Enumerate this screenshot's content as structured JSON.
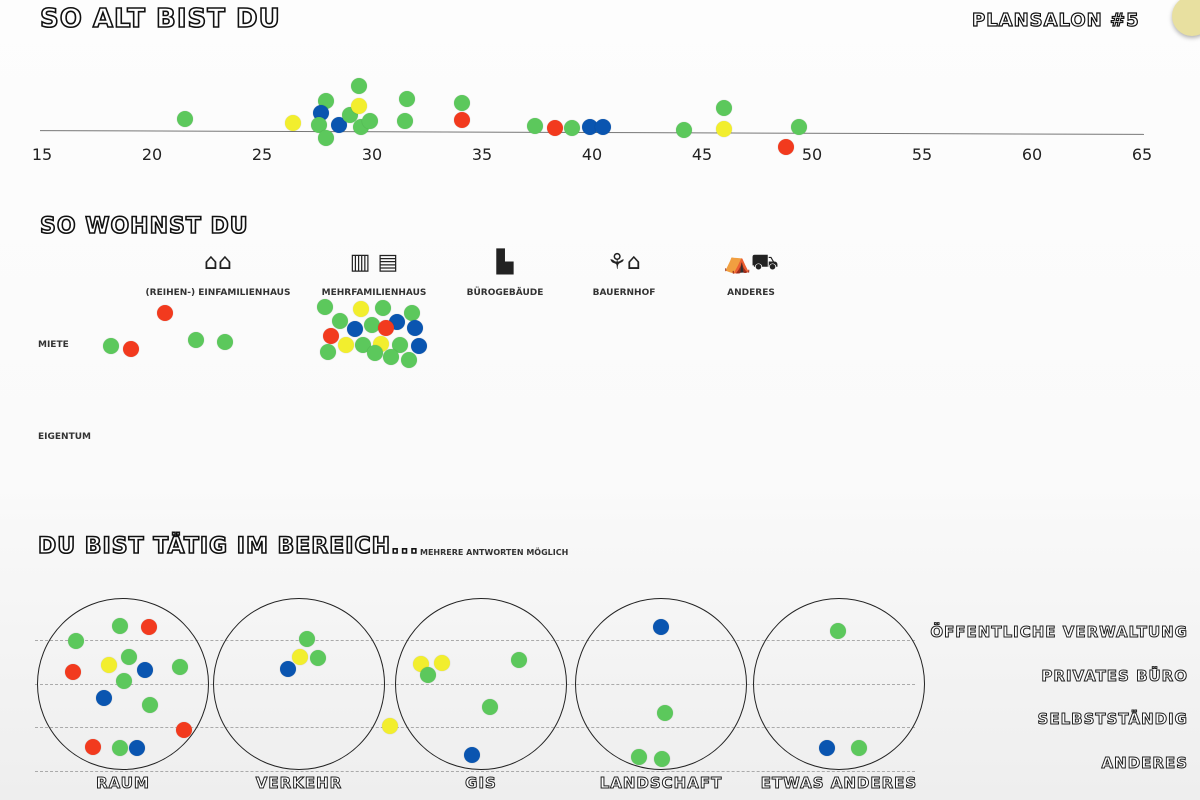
{
  "poster_title": "Plansalon #5",
  "colors": {
    "green": "#5cc85c",
    "red": "#f23a1e",
    "blue": "#0a55b0",
    "yellow": "#f2ee2e"
  },
  "chart_data": [
    {
      "type": "scatter",
      "title": "So alt bist du",
      "xlim": [
        15,
        65
      ],
      "ticks": [
        "15",
        "20",
        "25",
        "30",
        "35",
        "40",
        "45",
        "50",
        "55",
        "60",
        "65"
      ],
      "points": [
        {
          "x": 21.5,
          "color": "green"
        },
        {
          "x": 26.4,
          "color": "yellow"
        },
        {
          "x": 27.9,
          "color": "green"
        },
        {
          "x": 27.7,
          "color": "blue"
        },
        {
          "x": 27.6,
          "color": "green"
        },
        {
          "x": 27.9,
          "color": "green"
        },
        {
          "x": 28.5,
          "color": "blue"
        },
        {
          "x": 29.0,
          "color": "green"
        },
        {
          "x": 29.4,
          "color": "green"
        },
        {
          "x": 29.4,
          "color": "yellow"
        },
        {
          "x": 29.5,
          "color": "green"
        },
        {
          "x": 29.9,
          "color": "green"
        },
        {
          "x": 31.6,
          "color": "green"
        },
        {
          "x": 31.5,
          "color": "green"
        },
        {
          "x": 34.1,
          "color": "green"
        },
        {
          "x": 34.1,
          "color": "red"
        },
        {
          "x": 37.4,
          "color": "green"
        },
        {
          "x": 38.3,
          "color": "red"
        },
        {
          "x": 39.1,
          "color": "green"
        },
        {
          "x": 39.9,
          "color": "blue"
        },
        {
          "x": 40.5,
          "color": "blue"
        },
        {
          "x": 44.2,
          "color": "green"
        },
        {
          "x": 46.0,
          "color": "yellow"
        },
        {
          "x": 46.0,
          "color": "green"
        },
        {
          "x": 48.8,
          "color": "red"
        },
        {
          "x": 49.4,
          "color": "green"
        }
      ]
    },
    {
      "type": "table",
      "title": "So wohnst du",
      "columns": [
        "(Reihen-) Einfamilienhaus",
        "Mehrfamilienhaus",
        "Bürogebäude",
        "Bauernhof",
        "Anderes"
      ],
      "rows": [
        "Miete",
        "Eigentum"
      ],
      "cells": {
        "Miete": {
          "(Reihen-) Einfamilienhaus": [
            "green",
            "red",
            "red",
            "green",
            "green"
          ],
          "Mehrfamilienhaus": [
            "green",
            "yellow",
            "green",
            "green",
            "green",
            "green",
            "blue",
            "blue",
            "red",
            "blue",
            "red",
            "yellow",
            "green",
            "yellow",
            "green",
            "blue",
            "green",
            "green",
            "green",
            "green"
          ]
        },
        "Eigentum": {}
      }
    },
    {
      "type": "scatter",
      "title": "Du bist tätig im Bereich...",
      "subtitle": "mehrere Antworten möglich",
      "categories": [
        "Raum",
        "Verkehr",
        "GIS",
        "Landschaft",
        "Etwas Anderes"
      ],
      "rows": [
        "Öffentliche Verwaltung",
        "Privates Büro",
        "Selbstständig",
        "Anderes"
      ],
      "dots": {
        "Raum": [
          "green",
          "green",
          "red",
          "red",
          "yellow",
          "green",
          "blue",
          "green",
          "green",
          "blue",
          "green",
          "red",
          "red",
          "green",
          "blue"
        ],
        "Verkehr": [
          "green",
          "yellow",
          "green",
          "blue",
          "yellow"
        ],
        "GIS": [
          "yellow",
          "yellow",
          "green",
          "green",
          "green",
          "blue"
        ],
        "Landschaft": [
          "blue",
          "green",
          "green",
          "green"
        ],
        "Etwas Anderes": [
          "green",
          "blue",
          "green"
        ]
      }
    }
  ]
}
